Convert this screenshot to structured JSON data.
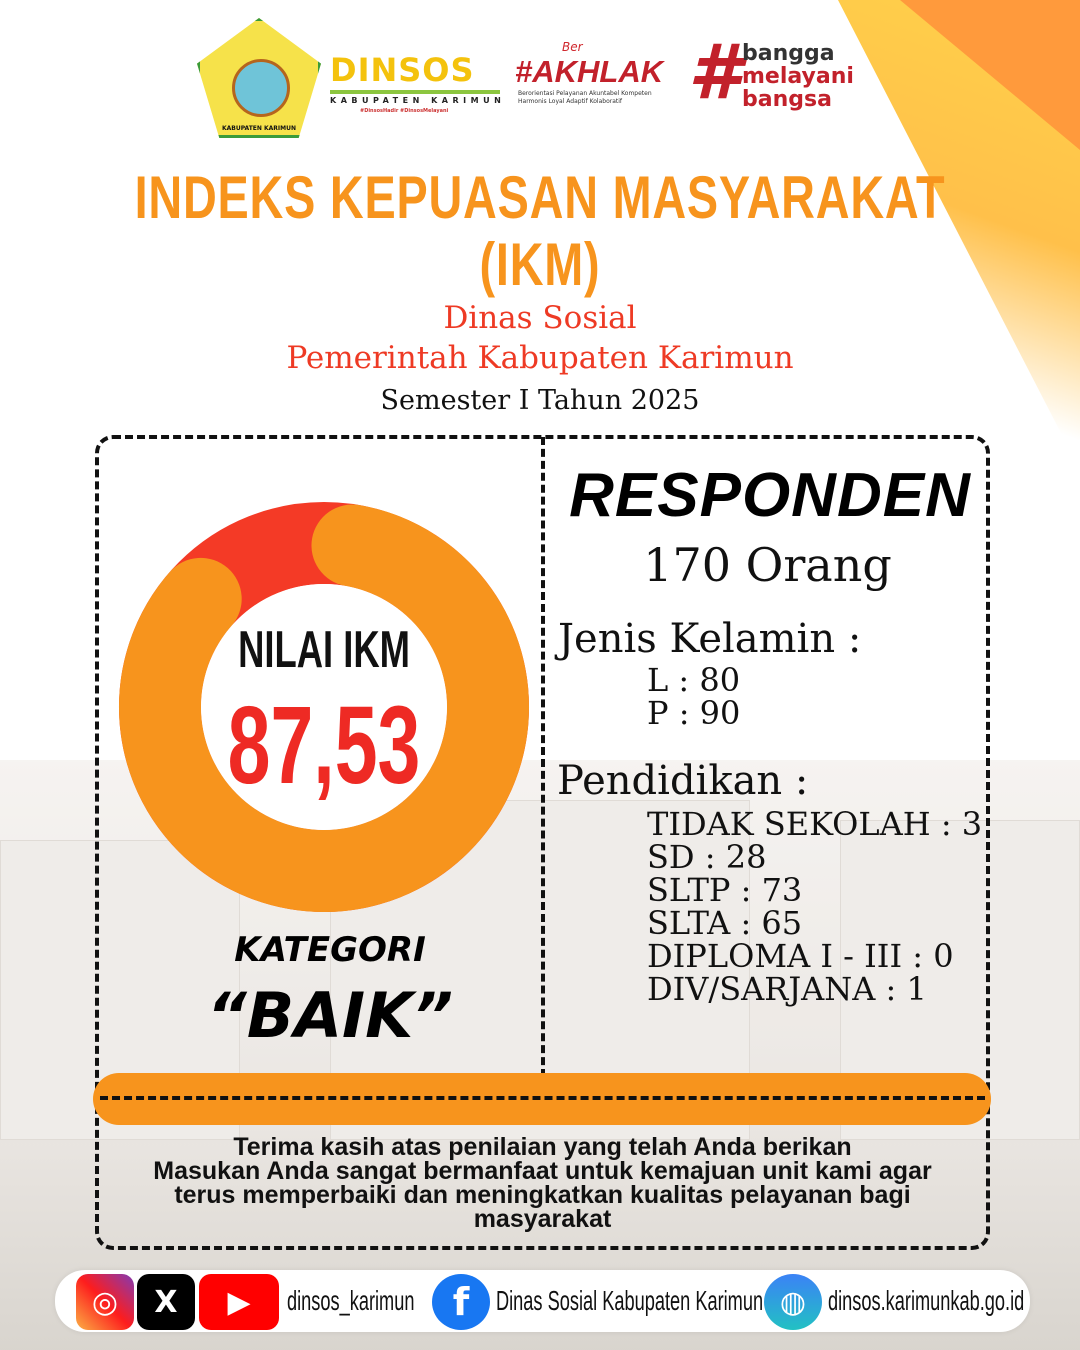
{
  "logos": {
    "regency": "KABUPATEN KARIMUN",
    "dinsos": "DINSOS",
    "dinsos_sub": "KABUPATEN KARIMUN",
    "dinsos_tags": "#DinsosHadir #DinsosMelayani",
    "akhlak_ber": "Ber",
    "akhlak": "#AKHLAK",
    "akhlak_sub1": "Berorientasi Pelayanan Akuntabel Kompeten",
    "akhlak_sub2": "Harmonis Loyal Adaptif Kolaboratif",
    "bangga": [
      "bangga",
      "melayani",
      "bangsa"
    ]
  },
  "header": {
    "title_line1": "INDEKS KEPUASAN MASYARAKAT",
    "title_line2": "(IKM)",
    "agency": "Dinas Sosial",
    "government": "Pemerintah Kabupaten Karimun",
    "period": "Semester I Tahun 2025"
  },
  "ikm": {
    "label": "NILAI IKM",
    "value": "87,53",
    "percent": 87.53,
    "category_label": "KATEGORI",
    "category": "“BAIK”",
    "colors": {
      "fill": "#f7941d",
      "remainder": "#f43a26"
    }
  },
  "respondents": {
    "title": "RESPONDEN",
    "total": "170 Orang",
    "gender_label": "Jenis Kelamin :",
    "gender": [
      "L : 80",
      "P : 90"
    ],
    "education_label": "Pendidikan :",
    "education": [
      "TIDAK SEKOLAH : 3",
      "SD : 28",
      "SLTP : 73",
      "SLTA : 65",
      "DIPLOMA I - III : 0",
      "DIV/SARJANA : 1"
    ]
  },
  "thanks": [
    "Terima kasih atas penilaian yang telah Anda berikan",
    "Masukan Anda sangat bermanfaat untuk kemajuan unit kami agar",
    "terus memperbaiki dan meningkatkan kualitas pelayanan bagi",
    "masyarakat"
  ],
  "footer": {
    "social_handle": "dinsos_karimun",
    "facebook": "Dinas Sosial Kabupaten Karimun",
    "website": "dinsos.karimunkab.go.id"
  }
}
